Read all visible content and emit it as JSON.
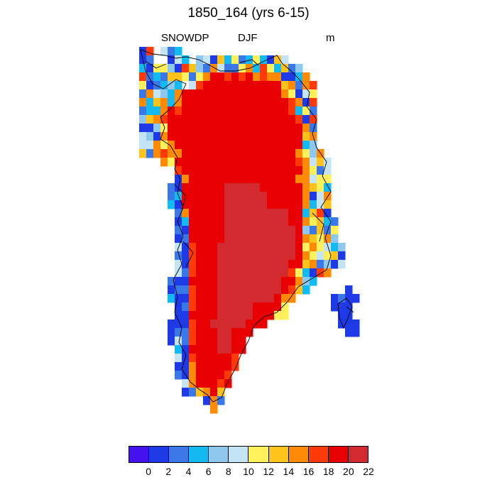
{
  "title": "1850_164 (yrs 6-15)",
  "variable": "SNOWDP",
  "season": "DJF",
  "units": "m",
  "colorbar": {
    "colors": [
      "#4312ef",
      "#1e3ae6",
      "#3a78e8",
      "#13baf2",
      "#8ec8ee",
      "#c4e4f4",
      "#fff05c",
      "#ffc31c",
      "#ff8a05",
      "#ff3a08",
      "#e80002",
      "#d22a2e"
    ],
    "tick_labels": [
      "0",
      "2",
      "4",
      "6",
      "8",
      "10",
      "12",
      "14",
      "16",
      "18",
      "20",
      "22"
    ]
  }
}
